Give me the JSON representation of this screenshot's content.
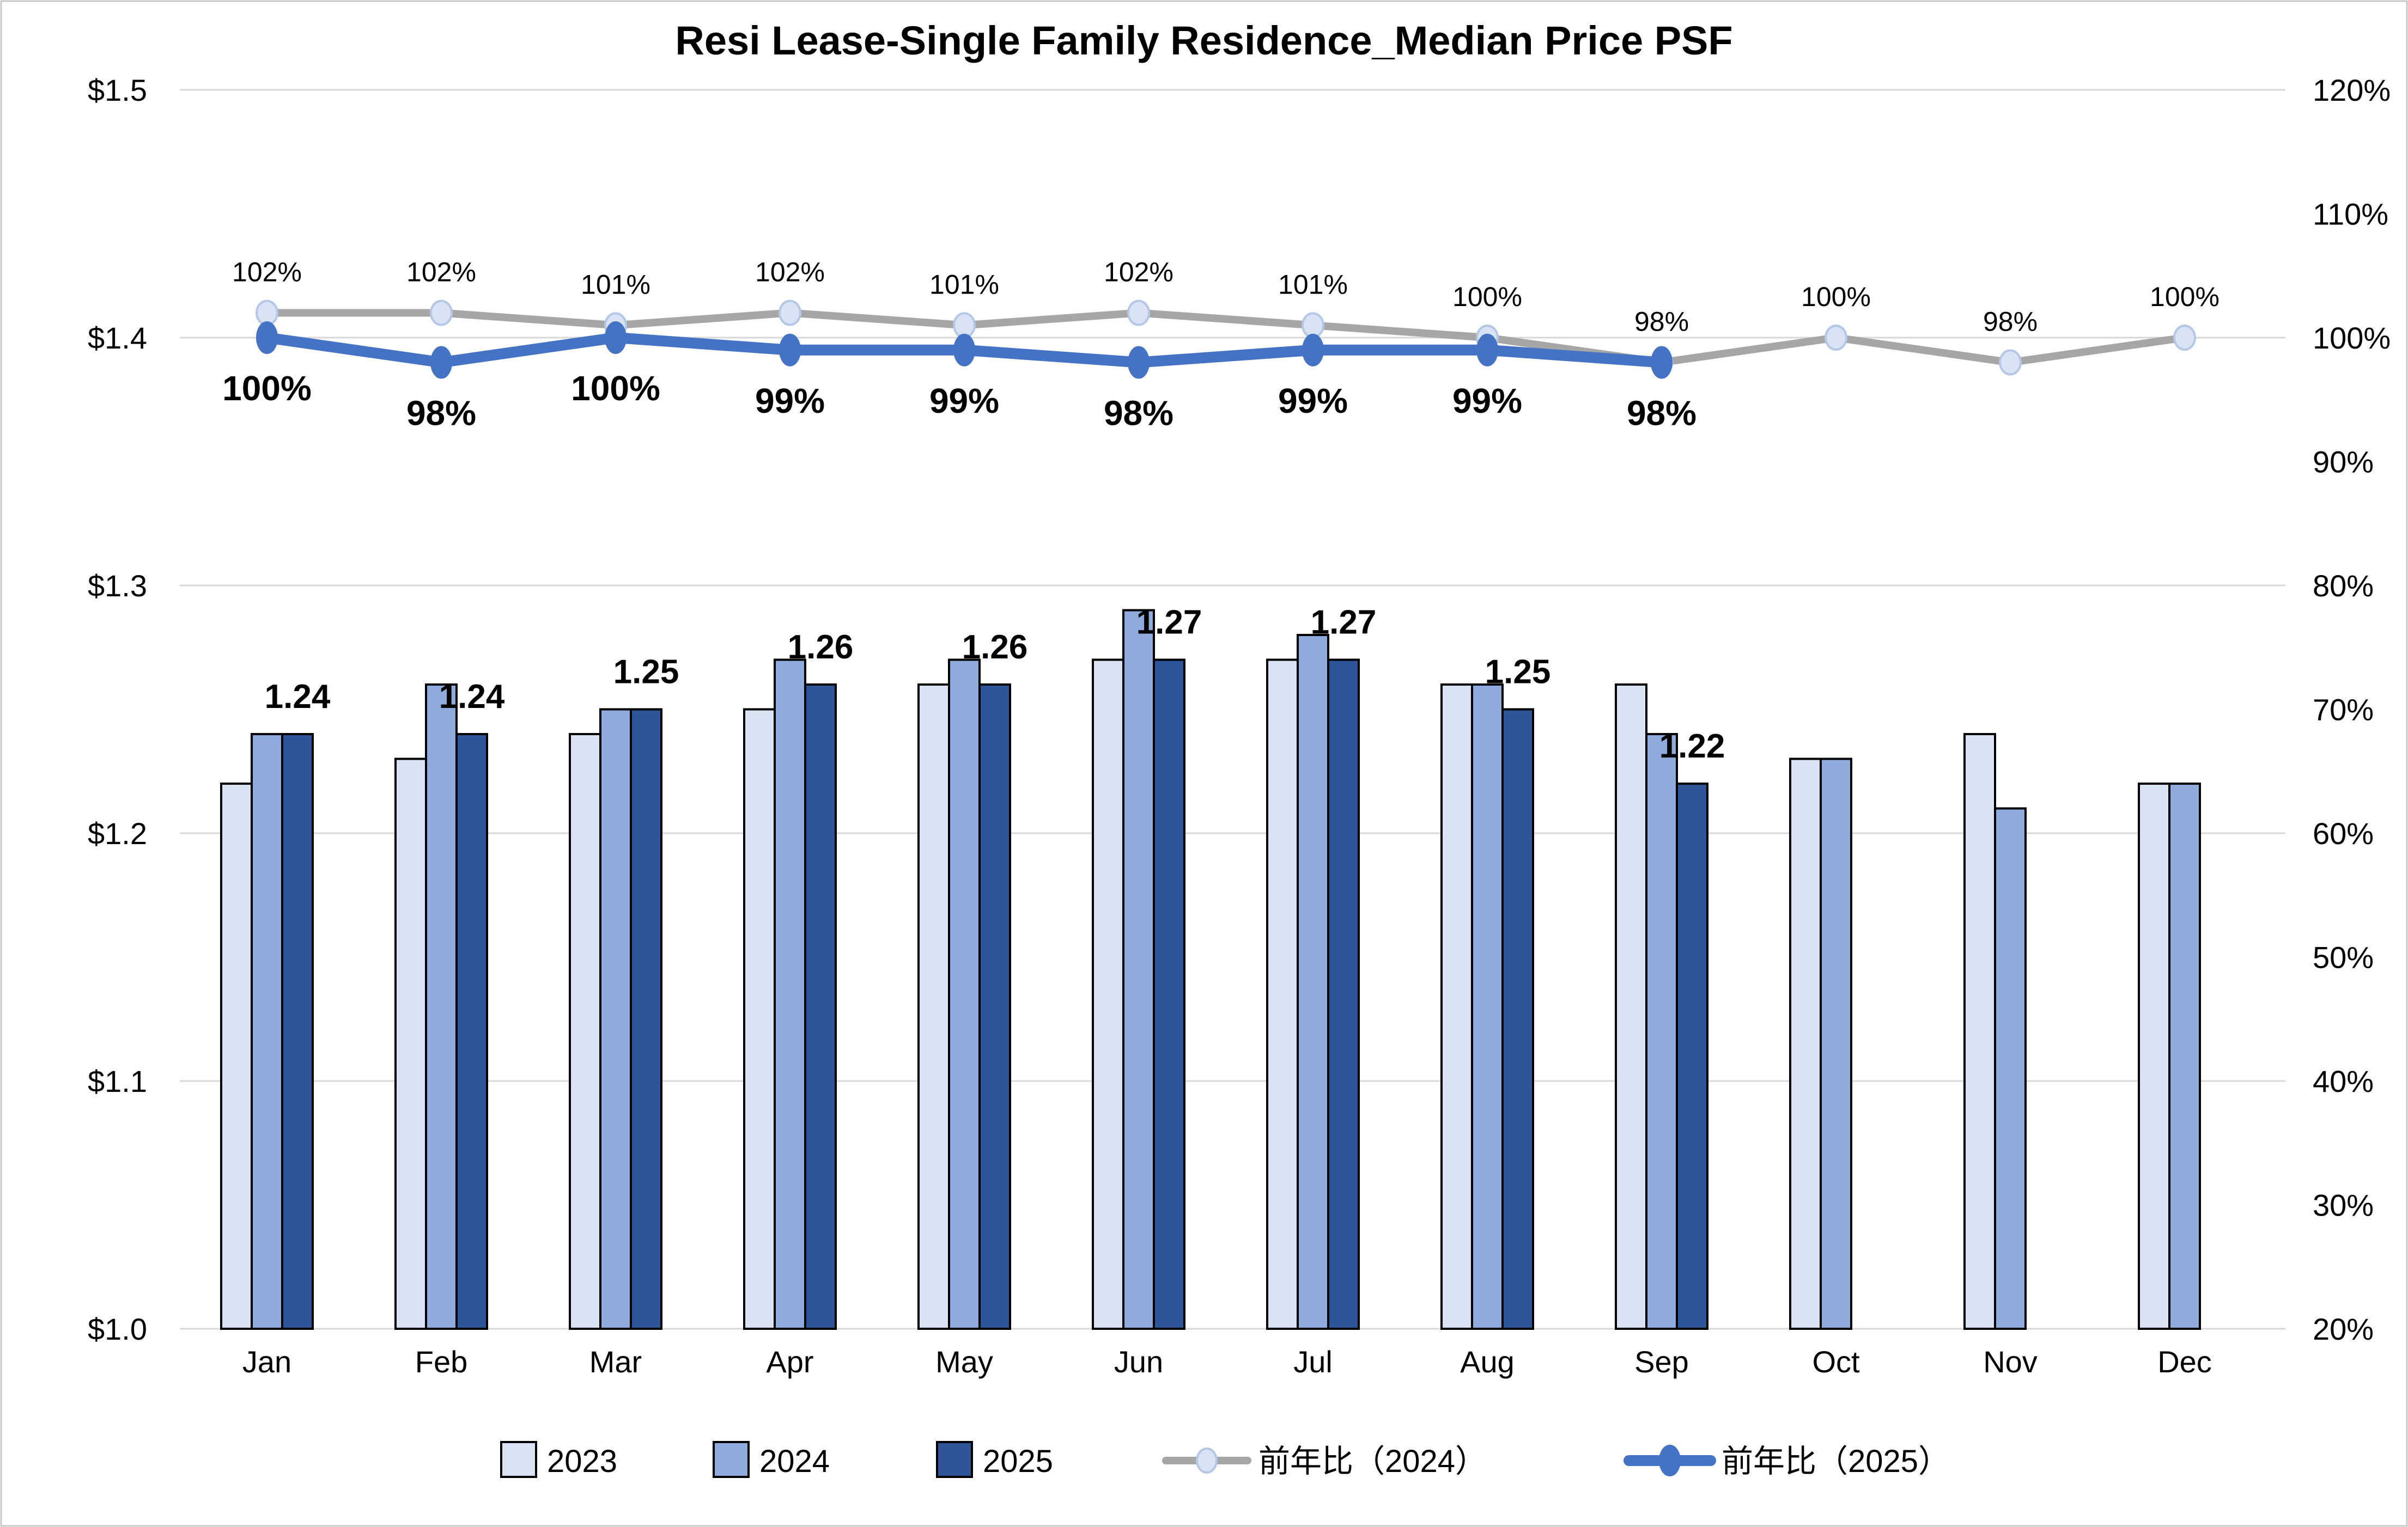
{
  "chart_data": {
    "type": "combo-bar-line",
    "title": "Resi Lease-Single Family Residence_Median Price PSF",
    "categories": [
      "Jan",
      "Feb",
      "Mar",
      "Apr",
      "May",
      "Jun",
      "Jul",
      "Aug",
      "Sep",
      "Oct",
      "Nov",
      "Dec"
    ],
    "bar_series": [
      {
        "name": "2023",
        "color": "#DAE3F3",
        "values": [
          1.22,
          1.23,
          1.24,
          1.25,
          1.26,
          1.27,
          1.27,
          1.26,
          1.26,
          1.23,
          1.24,
          1.22
        ]
      },
      {
        "name": "2024",
        "color": "#8FAADC",
        "values": [
          1.24,
          1.26,
          1.25,
          1.27,
          1.27,
          1.29,
          1.28,
          1.26,
          1.24,
          1.23,
          1.21,
          1.22
        ]
      },
      {
        "name": "2025",
        "color": "#2E5597",
        "values": [
          1.24,
          1.24,
          1.25,
          1.26,
          1.26,
          1.27,
          1.27,
          1.25,
          1.22,
          null,
          null,
          null
        ],
        "data_labels": [
          "1.24",
          "1.24",
          "1.25",
          "1.26",
          "1.26",
          "1.27",
          "1.27",
          "1.25",
          "1.22"
        ]
      }
    ],
    "line_series": [
      {
        "name": "前年比（2024）",
        "color": "#A6A6A6",
        "marker_fill": "#DAE3F3",
        "marker_stroke": "#B4C7E7",
        "values": [
          102,
          102,
          101,
          102,
          101,
          102,
          101,
          100,
          98,
          100,
          98,
          100
        ],
        "data_labels": [
          "102%",
          "102%",
          "101%",
          "102%",
          "101%",
          "102%",
          "101%",
          "100%",
          "98%",
          "100%",
          "98%",
          "100%"
        ],
        "label_position": "above",
        "label_color": "#404040",
        "label_bold": false
      },
      {
        "name": "前年比（2025）",
        "color": "#4472C4",
        "marker_fill": "#4472C4",
        "marker_stroke": "#4472C4",
        "values": [
          100,
          98,
          100,
          99,
          99,
          98,
          99,
          99,
          98,
          null,
          null,
          null
        ],
        "data_labels": [
          "100%",
          "98%",
          "100%",
          "99%",
          "99%",
          "98%",
          "99%",
          "99%",
          "98%"
        ],
        "label_position": "below",
        "label_color": "#000000",
        "label_bold": true
      }
    ],
    "axes": {
      "y_left": {
        "min": 1.0,
        "max": 1.5,
        "tick_labels": [
          "$1.5",
          "$1.4",
          "$1.3",
          "$1.2",
          "$1.1",
          "$1.0"
        ],
        "tick_values": [
          1.5,
          1.4,
          1.3,
          1.2,
          1.1,
          1.0
        ]
      },
      "y_right": {
        "min": 20,
        "max": 120,
        "tick_labels": [
          "120%",
          "110%",
          "100%",
          "90%",
          "80%",
          "70%",
          "60%",
          "50%",
          "40%",
          "30%",
          "20%"
        ],
        "tick_values": [
          120,
          110,
          100,
          90,
          80,
          70,
          60,
          50,
          40,
          30,
          20
        ]
      }
    },
    "legend": {
      "items": [
        {
          "kind": "bar",
          "label": "2023",
          "color": "#DAE3F3"
        },
        {
          "kind": "bar",
          "label": "2024",
          "color": "#8FAADC"
        },
        {
          "kind": "bar",
          "label": "2025",
          "color": "#2E5597"
        },
        {
          "kind": "line",
          "label": "前年比（2024）",
          "color": "#A6A6A6",
          "marker_fill": "#DAE3F3",
          "marker_stroke": "#B4C7E7"
        },
        {
          "kind": "line",
          "label": "前年比（2025）",
          "color": "#4472C4",
          "marker_fill": "#4472C4",
          "marker_stroke": "#4472C4"
        }
      ]
    },
    "grid_color": "#D9D9D9",
    "border_color": "#C9C9C9",
    "bar_outline": "#000000"
  }
}
